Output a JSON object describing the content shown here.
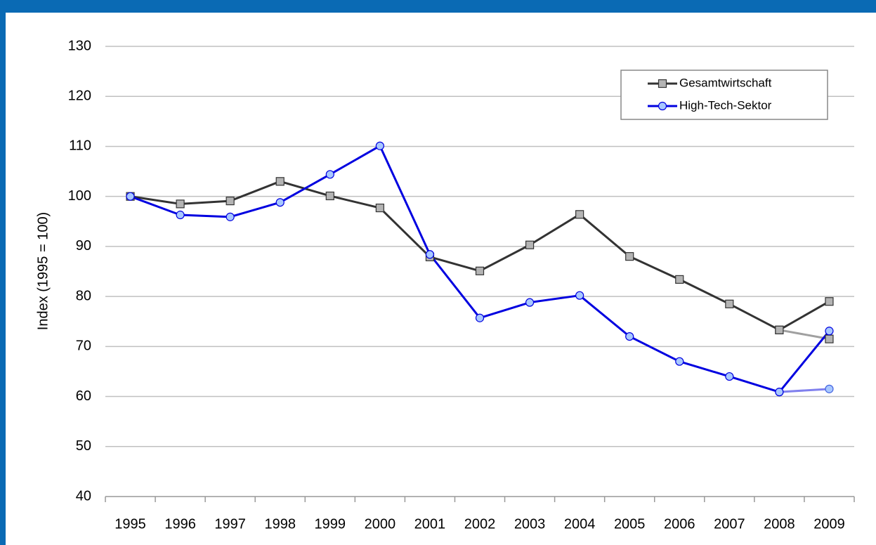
{
  "chart_data": {
    "type": "line",
    "y_label": "Index (1995 = 100)",
    "categories": [
      "1995",
      "1996",
      "1997",
      "1998",
      "1999",
      "2000",
      "2001",
      "2002",
      "2003",
      "2004",
      "2005",
      "2006",
      "2007",
      "2008",
      "2009"
    ],
    "series": [
      {
        "color": "#a0a0a0",
        "marker": "square",
        "values": [
          null,
          null,
          null,
          null,
          null,
          null,
          null,
          null,
          null,
          null,
          null,
          null,
          null,
          73.3,
          71.5
        ]
      },
      {
        "color": "#8080ee",
        "marker": "circle",
        "values": [
          null,
          null,
          null,
          null,
          null,
          null,
          null,
          null,
          null,
          null,
          null,
          null,
          null,
          60.9,
          61.5
        ]
      },
      {
        "name": "Gesamtwirtschaft",
        "color": "#333333",
        "marker": "square",
        "values": [
          100,
          98.5,
          99.1,
          103,
          100.1,
          97.7,
          87.9,
          85.1,
          90.3,
          96.4,
          88.0,
          83.4,
          78.5,
          73.3,
          79.0
        ]
      },
      {
        "name": "High-Tech-Sektor",
        "color": "#0000e0",
        "marker": "circle",
        "values": [
          100,
          96.3,
          95.9,
          98.8,
          104.4,
          110.1,
          88.4,
          75.7,
          78.8,
          80.2,
          72.0,
          67.0,
          64.0,
          60.9,
          73.1
        ]
      }
    ],
    "ylim": [
      40,
      130
    ],
    "yticks": [
      40,
      50,
      60,
      70,
      80,
      90,
      100,
      110,
      120,
      130
    ],
    "grid": true,
    "legend": "top-right"
  }
}
